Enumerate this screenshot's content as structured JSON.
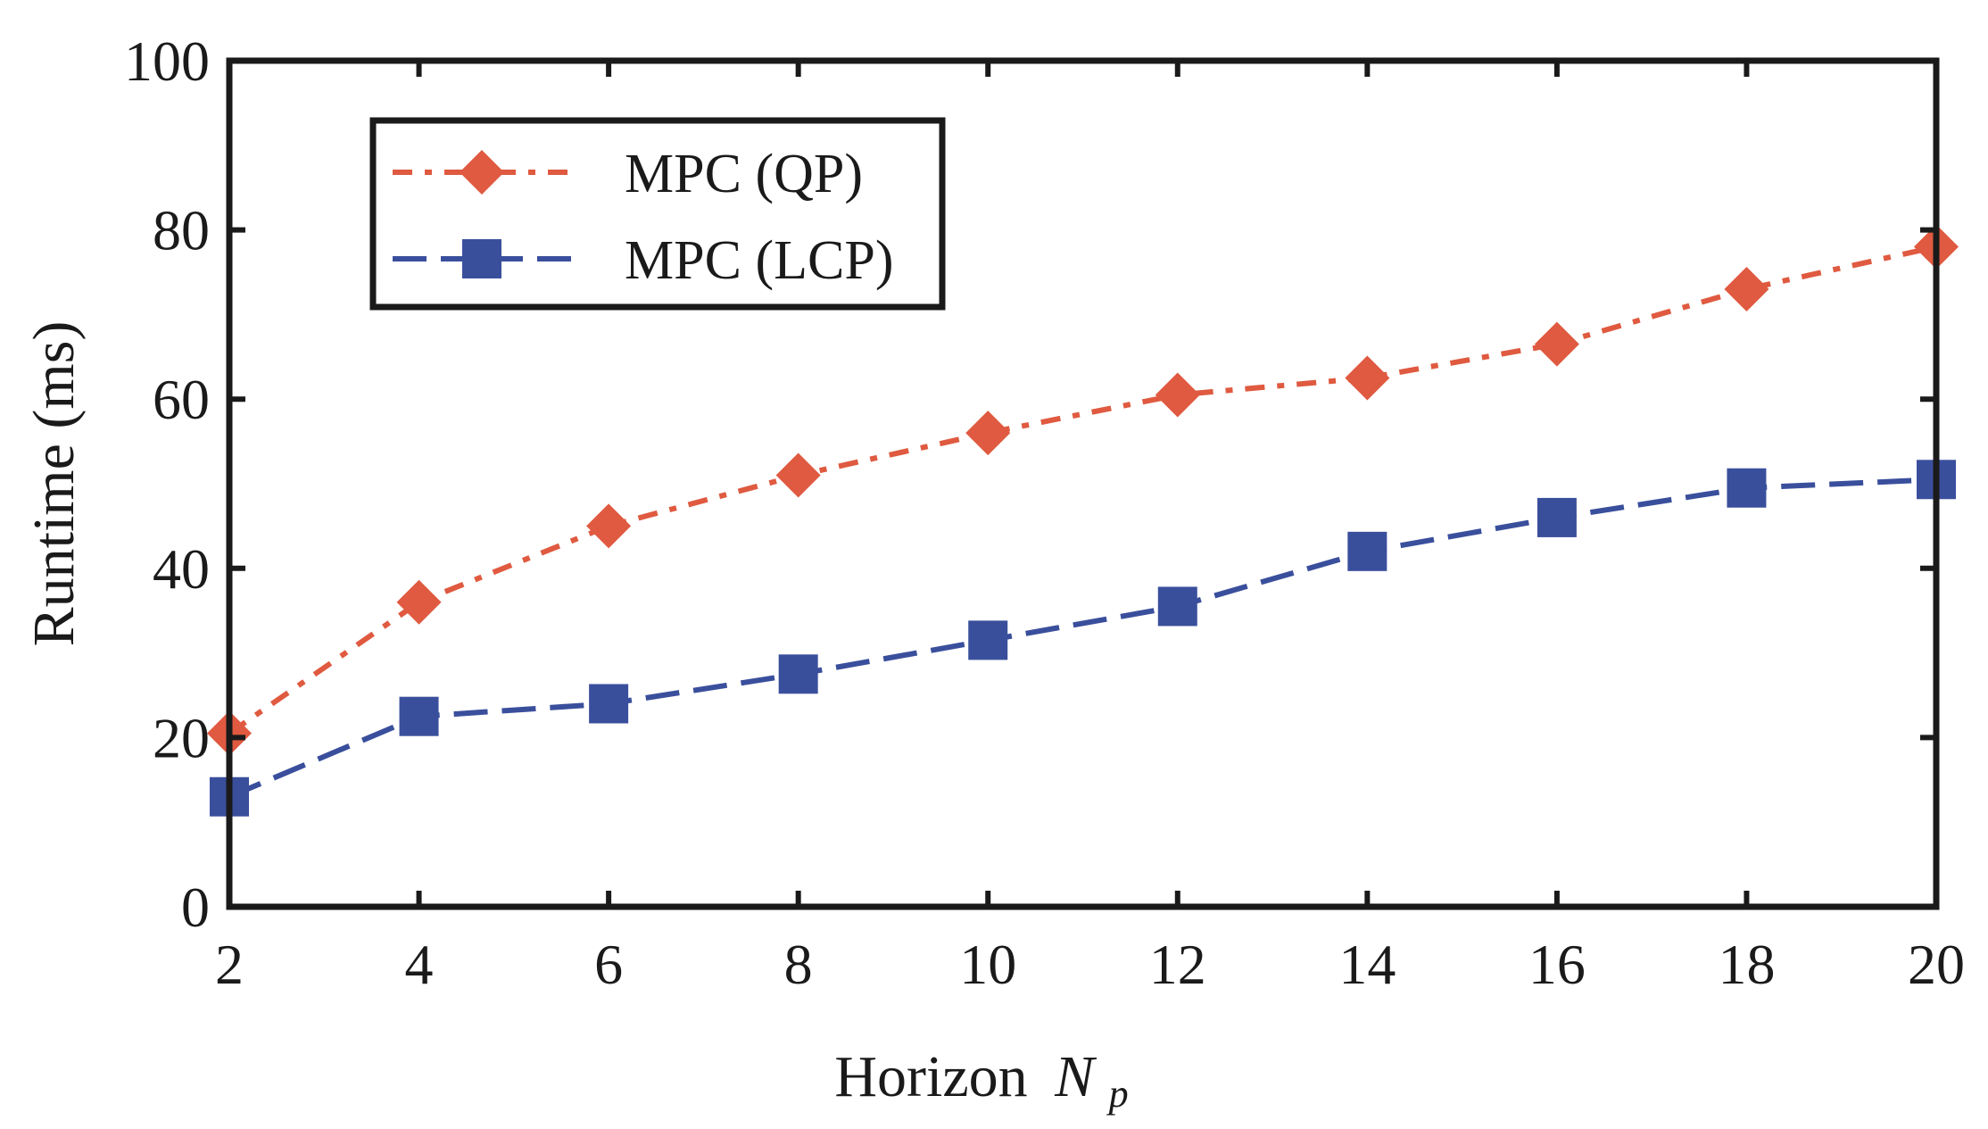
{
  "chart_data": {
    "type": "line",
    "title": "",
    "xlabel": "Horizon",
    "xlabel_symbol": "N",
    "xlabel_subscript": "p",
    "ylabel": "Runtime (ms)",
    "xlim": [
      2,
      20
    ],
    "ylim": [
      0,
      100
    ],
    "xticks": [
      2,
      4,
      6,
      8,
      10,
      12,
      14,
      16,
      18,
      20
    ],
    "yticks": [
      0,
      20,
      40,
      60,
      80,
      100
    ],
    "grid": false,
    "legend_position": "top-left",
    "series": [
      {
        "name": "MPC (QP)",
        "color": "#df5a40",
        "marker": "diamond",
        "line_style": "dash-dot",
        "x": [
          2,
          4,
          6,
          8,
          10,
          12,
          14,
          16,
          18,
          20
        ],
        "y": [
          20.5,
          36,
          45,
          51,
          56,
          60.5,
          62.5,
          66.5,
          73,
          78
        ]
      },
      {
        "name": "MPC (LCP)",
        "color": "#3a4f9c",
        "marker": "square",
        "line_style": "dash",
        "x": [
          2,
          4,
          6,
          8,
          10,
          12,
          14,
          16,
          18,
          20
        ],
        "y": [
          13,
          22.5,
          24,
          27.5,
          31.5,
          35.5,
          42,
          46,
          49.5,
          50.5
        ]
      }
    ]
  }
}
